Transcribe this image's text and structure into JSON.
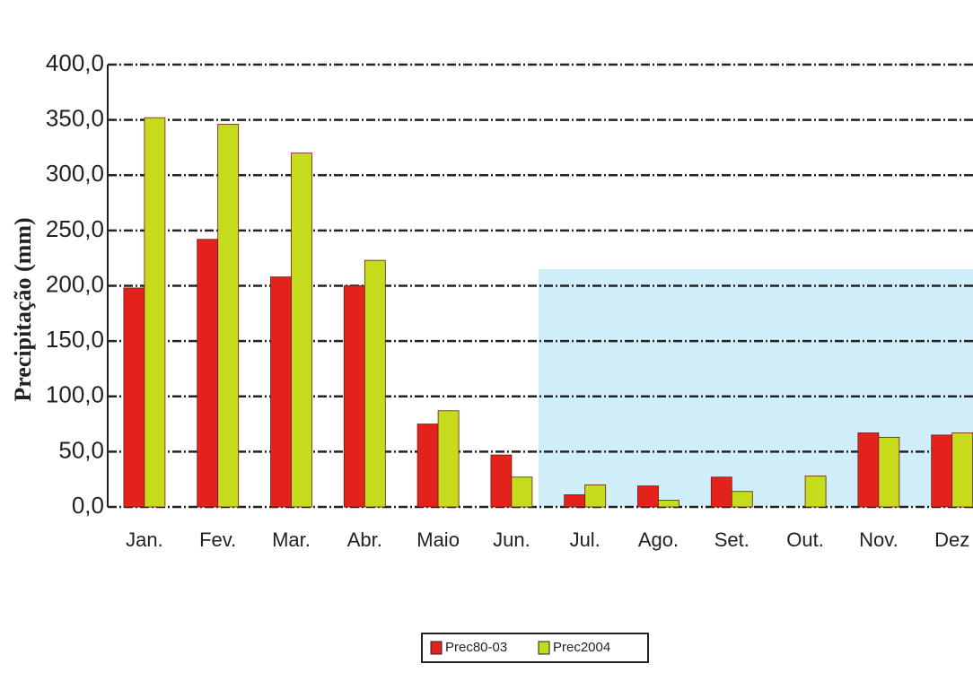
{
  "chart_data": {
    "type": "bar",
    "y_label": "Precipitação (mm)",
    "categories": [
      "Jan.",
      "Fev.",
      "Mar.",
      "Abr.",
      "Maio",
      "Jun.",
      "Jul.",
      "Ago.",
      "Set.",
      "Out.",
      "Nov.",
      "Dez"
    ],
    "series": [
      {
        "name": "Prec80-03",
        "color": "#e4221c",
        "values": [
          198,
          242,
          208,
          200,
          75,
          47,
          11,
          19,
          27,
          0,
          67,
          65
        ]
      },
      {
        "name": "Prec2004",
        "color": "#c6db1c",
        "values": [
          352,
          346,
          320,
          223,
          87,
          27,
          20,
          6,
          14,
          28,
          63,
          67
        ]
      }
    ],
    "ylim": [
      0,
      400
    ],
    "yticks": [
      {
        "value": 0,
        "label": "0,0"
      },
      {
        "value": 50,
        "label": "50,0"
      },
      {
        "value": 100,
        "label": "100,0"
      },
      {
        "value": 150,
        "label": "150,0"
      },
      {
        "value": 200,
        "label": "200,0"
      },
      {
        "value": 250,
        "label": "250,0"
      },
      {
        "value": 300,
        "label": "300,0"
      },
      {
        "value": 350,
        "label": "350,0"
      },
      {
        "value": 400,
        "label": "400,0"
      }
    ],
    "grid": true
  }
}
